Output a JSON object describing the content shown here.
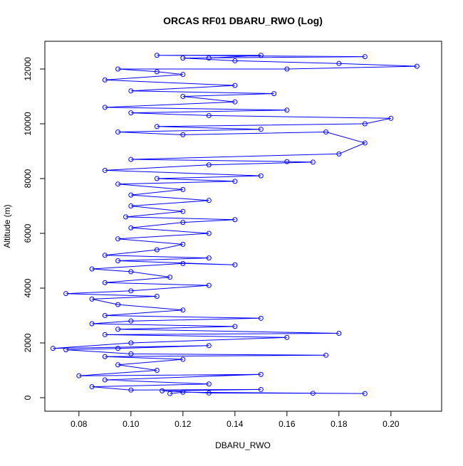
{
  "chart_data": {
    "type": "line",
    "markers": true,
    "title": "ORCAS RF01 DBARU_RWO (Log)",
    "x_label": "DBARU_RWO",
    "y_label": "Altitude (m)",
    "color": "#0000ff",
    "x": [
      0.115,
      0.12,
      0.19,
      0.17,
      0.13,
      0.112,
      0.15,
      0.1,
      0.085,
      0.13,
      0.09,
      0.15,
      0.08,
      0.11,
      0.095,
      0.12,
      0.09,
      0.175,
      0.1,
      0.075,
      0.095,
      0.13,
      0.07,
      0.1,
      0.16,
      0.09,
      0.18,
      0.095,
      0.14,
      0.085,
      0.1,
      0.15,
      0.09,
      0.12,
      0.095,
      0.085,
      0.11,
      0.075,
      0.1,
      0.13,
      0.09,
      0.115,
      0.1,
      0.085,
      0.12,
      0.14,
      0.095,
      0.13,
      0.09,
      0.11,
      0.12,
      0.095,
      0.13,
      0.1,
      0.12,
      0.14,
      0.098,
      0.12,
      0.1,
      0.13,
      0.1,
      0.12,
      0.095,
      0.14,
      0.11,
      0.15,
      0.09,
      0.13,
      0.17,
      0.16,
      0.1,
      0.18,
      0.19,
      0.175,
      0.12,
      0.095,
      0.15,
      0.11,
      0.19,
      0.2,
      0.13,
      0.1,
      0.16,
      0.09,
      0.14,
      0.12,
      0.155,
      0.1,
      0.14,
      0.09,
      0.12,
      0.11,
      0.095,
      0.16,
      0.21,
      0.18,
      0.14,
      0.12,
      0.19,
      0.11,
      0.15,
      0.13
    ],
    "y": [
      150,
      200,
      150,
      160,
      170,
      250,
      300,
      280,
      400,
      500,
      650,
      850,
      800,
      1000,
      1200,
      1400,
      1500,
      1550,
      1600,
      1750,
      1800,
      1900,
      1800,
      2000,
      2200,
      2300,
      2350,
      2500,
      2600,
      2700,
      2800,
      2900,
      3000,
      3200,
      3400,
      3600,
      3700,
      3800,
      3900,
      4100,
      4200,
      4400,
      4600,
      4700,
      4900,
      4850,
      5000,
      5100,
      5200,
      5400,
      5600,
      5800,
      6000,
      6200,
      6400,
      6500,
      6600,
      6800,
      7000,
      7200,
      7400,
      7600,
      7800,
      7900,
      8000,
      8100,
      8300,
      8500,
      8600,
      8620,
      8700,
      8900,
      9300,
      9700,
      9600,
      9700,
      9800,
      9900,
      10000,
      10200,
      10300,
      10400,
      10500,
      10600,
      10800,
      11000,
      11100,
      11200,
      11400,
      11600,
      11800,
      11900,
      12000,
      12000,
      12100,
      12200,
      12300,
      12400,
      12450,
      12500,
      12500,
      12400
    ],
    "xlim": [
      0.0669,
      0.2195
    ],
    "ylim": [
      -494,
      13013
    ],
    "xticks": [
      0.08,
      {
        "value": 0.1,
        "label": "0.10"
      },
      0.12,
      0.14,
      0.16,
      0.18,
      {
        "value": 0.2,
        "label": "0.20"
      }
    ],
    "yticks": [
      0,
      2000,
      4000,
      6000,
      8000,
      10000,
      12000
    ]
  }
}
